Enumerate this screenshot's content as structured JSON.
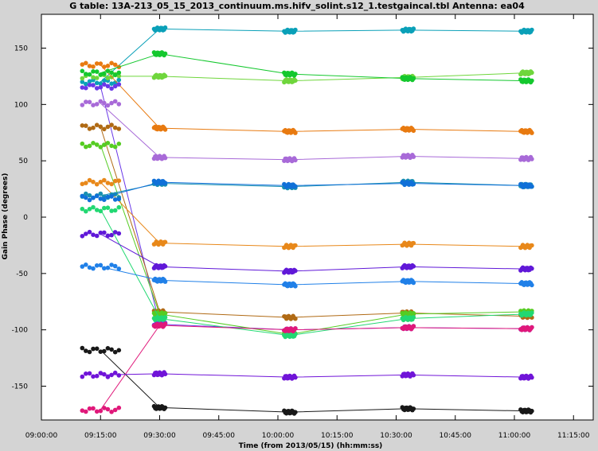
{
  "chart_data": {
    "type": "line",
    "title": "G table: 13A-213_05_15_2013_continuum.ms.hifv_solint.s12_1.testgaincal.tbl   Antenna: ea04",
    "xlabel": "Time (from 2013/05/15) (hh:mm:ss)",
    "ylabel": "Gain Phase (degrees)",
    "xlim": [
      "09:00:00",
      "11:20:00"
    ],
    "ylim": [
      -180,
      180
    ],
    "x_ticks": [
      "09:00:00",
      "09:15:00",
      "09:30:00",
      "09:45:00",
      "10:00:00",
      "10:15:00",
      "10:30:00",
      "10:45:00",
      "11:00:00",
      "11:15:00"
    ],
    "y_ticks": [
      "150",
      "100",
      "50",
      "0",
      "-50",
      "-100",
      "-150"
    ],
    "grid": false,
    "legend": "none",
    "x_groups": [
      "09:15:00",
      "09:30:00",
      "10:03:00",
      "10:33:00",
      "11:03:00"
    ],
    "series": [
      {
        "color": "#0aa0b8",
        "values": [
          120,
          167,
          165,
          166,
          165
        ]
      },
      {
        "color": "#6fd63c",
        "values": [
          125,
          125,
          121,
          124,
          128
        ]
      },
      {
        "color": "#e87a10",
        "values": [
          135,
          79,
          76,
          78,
          76
        ]
      },
      {
        "color": "#14c82e",
        "values": [
          128,
          145,
          127,
          123,
          121
        ]
      },
      {
        "color": "#6a38e8",
        "values": [
          116,
          -95,
          -100,
          -98,
          -99
        ]
      },
      {
        "color": "#a86ad8",
        "values": [
          101,
          53,
          51,
          54,
          52
        ]
      },
      {
        "color": "#b06a14",
        "values": [
          80,
          -84,
          -89,
          -85,
          -88
        ]
      },
      {
        "color": "#55cc22",
        "values": [
          64,
          -86,
          -104,
          -86,
          -84
        ]
      },
      {
        "color": "#e8881a",
        "values": [
          31,
          -23,
          -26,
          -24,
          -26
        ]
      },
      {
        "color": "#1890b0",
        "values": [
          19,
          30,
          27,
          31,
          28
        ]
      },
      {
        "color": "#1070d8",
        "values": [
          17,
          31,
          28,
          30,
          28
        ]
      },
      {
        "color": "#22d872",
        "values": [
          7,
          -90,
          -105,
          -90,
          -86
        ]
      },
      {
        "color": "#6018d8",
        "values": [
          -15,
          -44,
          -48,
          -44,
          -46
        ]
      },
      {
        "color": "#2080e8",
        "values": [
          -44,
          -56,
          -60,
          -57,
          -59
        ]
      },
      {
        "color": "#181818",
        "values": [
          -118,
          -169,
          -173,
          -170,
          -172
        ]
      },
      {
        "color": "#e0187a",
        "values": [
          -171,
          -96,
          -100,
          -98,
          -99
        ]
      },
      {
        "color": "#7014d8",
        "values": [
          -140,
          -139,
          -142,
          -140,
          -142
        ]
      }
    ]
  }
}
